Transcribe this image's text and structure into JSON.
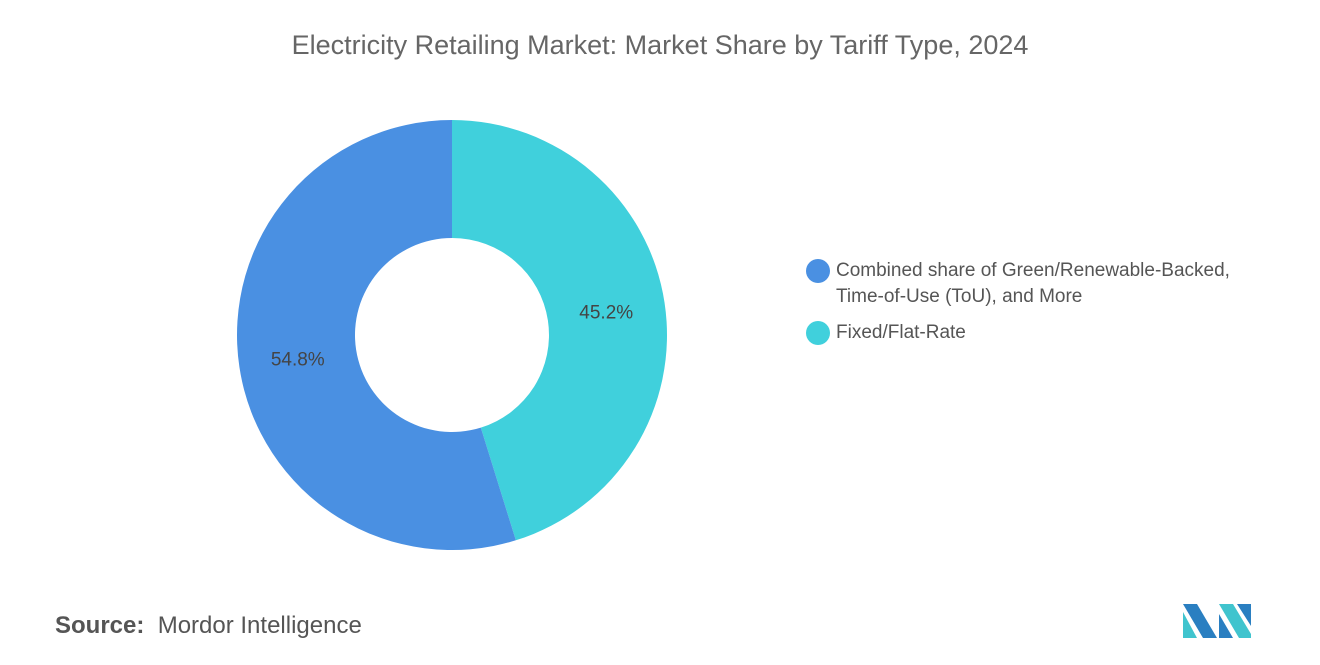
{
  "chart_data": {
    "type": "pie",
    "donut": true,
    "title": "Electricity Retailing Market: Market Share by Tariff Type, 2024",
    "slices": [
      {
        "label": "Fixed/Flat-Rate",
        "value": 45.2,
        "display": "45.2%",
        "color": "#40D0DC"
      },
      {
        "label": "Combined share of Green/Renewable-Backed, Time-of-Use (ToU), and More",
        "value": 54.8,
        "display": "54.8%",
        "color": "#4A90E2"
      }
    ],
    "legend": {
      "placement": "right",
      "entries": [
        {
          "line1": "Combined share of Green/Renewable-Backed,",
          "line2": "Time-of-Use (ToU), and More",
          "color": "#4A90E2"
        },
        {
          "line1": "Fixed/Flat-Rate",
          "color": "#40D0DC"
        }
      ]
    }
  },
  "source": {
    "label": "Source:",
    "value": "Mordor Intelligence"
  },
  "logo": {
    "name": "mordor-intelligence-logo",
    "colors": [
      "#2A7FC1",
      "#40C4CE"
    ]
  }
}
